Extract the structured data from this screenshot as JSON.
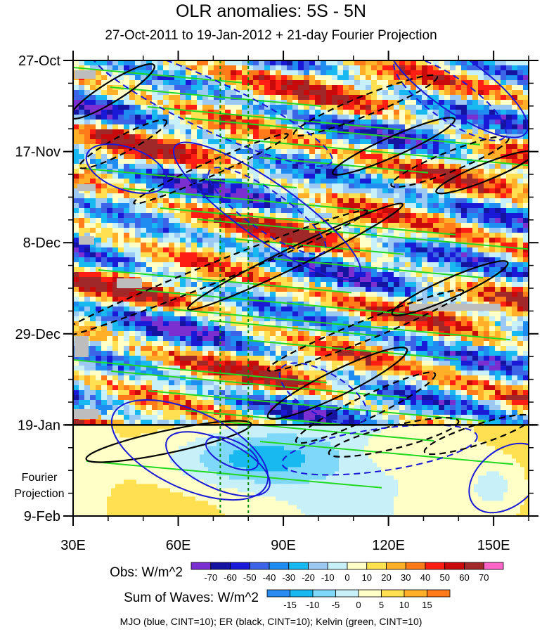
{
  "title": "OLR anomalies: 5S - 5N",
  "subtitle": "27-Oct-2011 to 19-Jan-2012 + 21-day Fourier Projection",
  "chart_data": {
    "type": "heatmap",
    "title": "OLR anomalies: 5S - 5N",
    "subtitle": "27-Oct-2011 to 19-Jan-2012 + 21-day Fourier Projection",
    "x_ticks": [
      "30E",
      "60E",
      "90E",
      "120E",
      "150E"
    ],
    "x_tick_values": [
      30,
      60,
      90,
      120,
      150
    ],
    "xlim": [
      30,
      160
    ],
    "y_ticks": [
      "27-Oct",
      "17-Nov",
      "8-Dec",
      "29-Dec",
      "19-Jan",
      "9-Feb"
    ],
    "y_tick_days": [
      0,
      21,
      42,
      63,
      84,
      105
    ],
    "ylim_days": [
      0,
      105
    ],
    "projection_label": "Fourier Projection",
    "projection_start": "19-Jan",
    "reference_lines_lon": [
      72,
      80
    ],
    "obs_colorbar": {
      "label": "Obs: W/m^2",
      "levels": [
        "-70",
        "-60",
        "-50",
        "-40",
        "-30",
        "-20",
        "-10",
        "0",
        "10",
        "20",
        "30",
        "40",
        "50",
        "60",
        "70"
      ],
      "colors": [
        "#7b2fd0",
        "#1414a0",
        "#1a1ad6",
        "#3c64e6",
        "#1e8cf0",
        "#18b8f0",
        "#9cc8f4",
        "#c8f0f8",
        "#ffffc8",
        "#ffe050",
        "#ffb028",
        "#ff7a18",
        "#ff1e14",
        "#c80a0a",
        "#a02828",
        "#ff64c8"
      ]
    },
    "waves_colorbar": {
      "label": "Sum of Waves: W/m^2",
      "levels": [
        "-15",
        "-10",
        "-5",
        "0",
        "5",
        "10",
        "15"
      ],
      "colors": [
        "#2a8cf0",
        "#18b8f0",
        "#80d8f8",
        "#c8f0f8",
        "#ffffc8",
        "#ffe050",
        "#ffb028",
        "#ff7a18"
      ]
    },
    "caption": "MJO (blue, CINT=10); ER (black, CINT=10); Kelvin (green, CINT=10)",
    "series": [
      {
        "name": "MJO",
        "color": "#1a1ad6"
      },
      {
        "name": "ER",
        "color": "#000000"
      },
      {
        "name": "Kelvin",
        "color": "#22d822"
      }
    ]
  }
}
